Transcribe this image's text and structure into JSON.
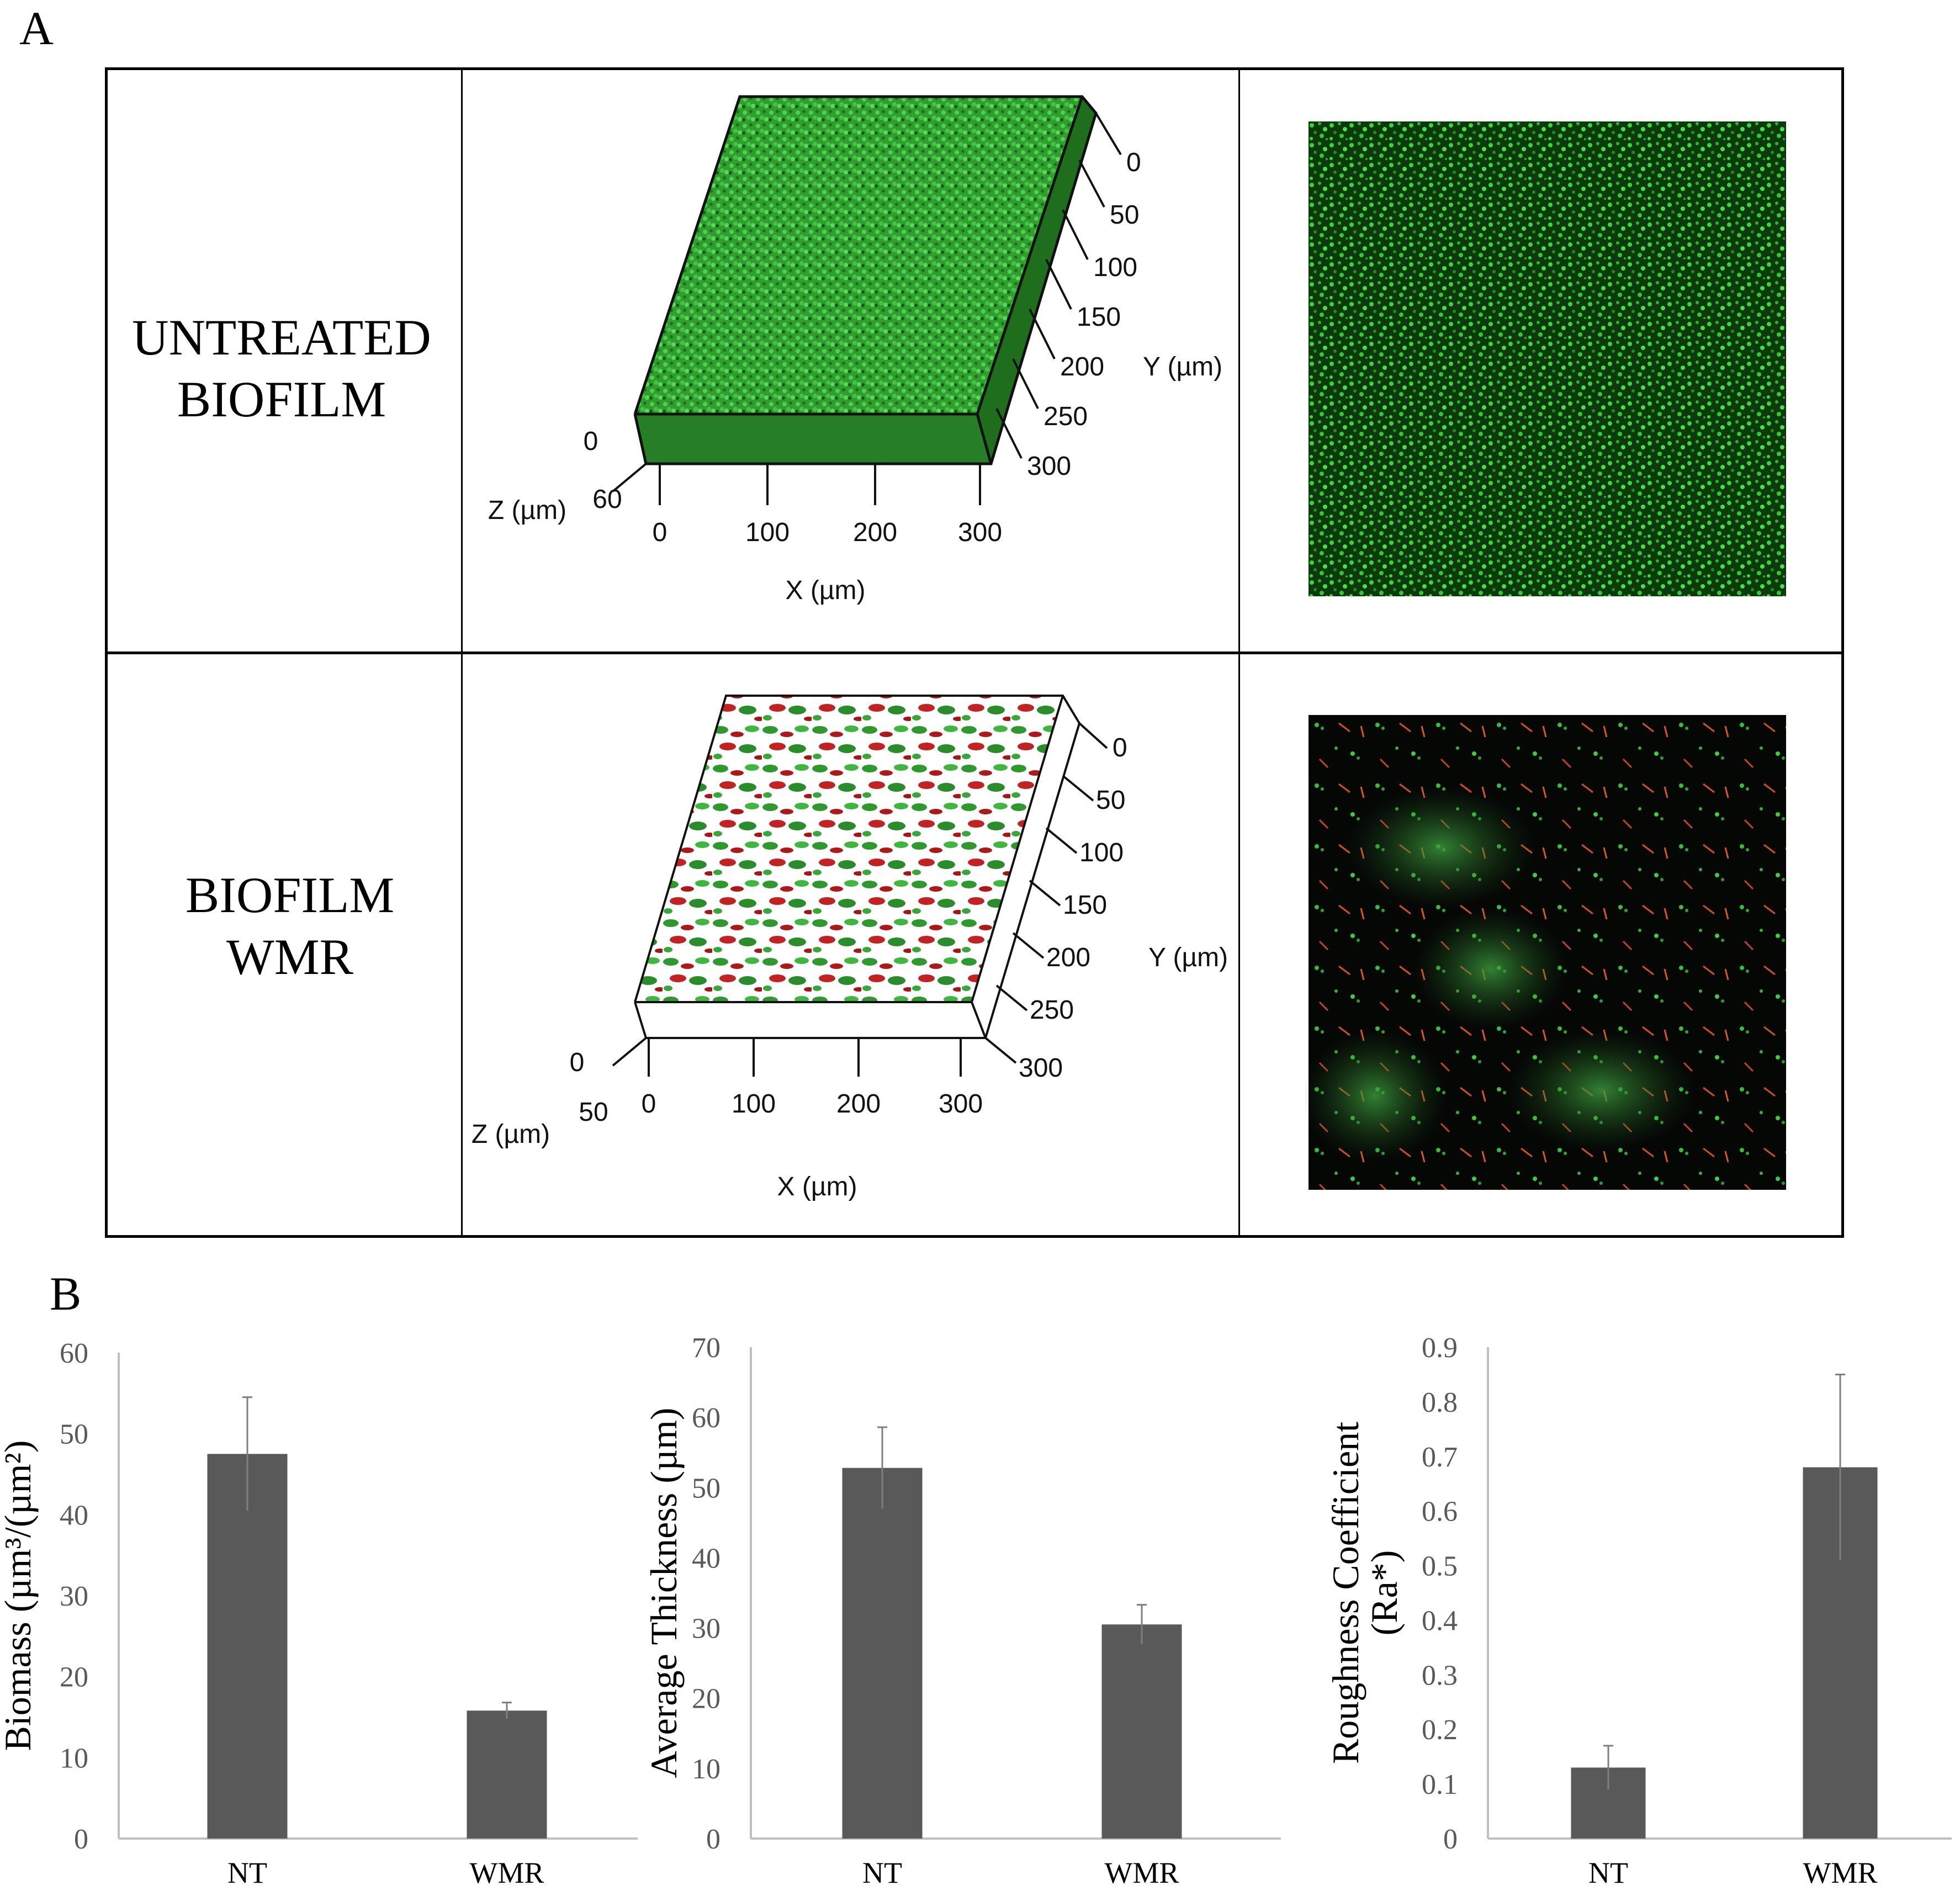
{
  "panel_a": {
    "label": "A",
    "rows": [
      {
        "label_line1": "UNTREATED",
        "label_line2": "BIOFILM",
        "render3d": {
          "y_ticks": [
            "0",
            "50",
            "100",
            "150",
            "200",
            "250",
            "300"
          ],
          "x_ticks": [
            "0",
            "100",
            "200",
            "300"
          ],
          "z_ticks": [
            "0",
            "60"
          ],
          "y_label": "Y (µm)",
          "x_label": "X (µm)",
          "z_label": "Z (µm)",
          "content": "dense green (live) cells"
        },
        "micrograph": "dense green live-cell confocal image"
      },
      {
        "label_line1": "BIOFILM",
        "label_line2": "WMR",
        "render3d": {
          "y_ticks": [
            "0",
            "50",
            "100",
            "150",
            "200",
            "250",
            "300"
          ],
          "x_ticks": [
            "0",
            "100",
            "200",
            "300"
          ],
          "z_ticks": [
            "0",
            "50"
          ],
          "y_label": "Y (µm)",
          "x_label": "X (µm)",
          "z_label": "Z (µm)",
          "content": "sparse green and red (dead) cells"
        },
        "micrograph": "sparse green/red confocal image"
      }
    ]
  },
  "panel_b": {
    "label": "B",
    "colors": {
      "bar": "#595959",
      "axis": "#bfbfbf",
      "tick_text": "#595959"
    }
  },
  "chart_data": [
    {
      "type": "bar",
      "categories": [
        "NT",
        "WMR"
      ],
      "values": [
        47.5,
        15.8
      ],
      "errors": [
        7,
        1
      ],
      "ylabel": "Biomass (µm³/(µm²)",
      "ylim": [
        0,
        60
      ],
      "yticks": [
        "0",
        "10",
        "20",
        "30",
        "40",
        "50",
        "60"
      ],
      "grid": false
    },
    {
      "type": "bar",
      "categories": [
        "NT",
        "WMR"
      ],
      "values": [
        52.8,
        30.5
      ],
      "errors": [
        5.8,
        2.8
      ],
      "ylabel": "Average Thickness (µm)",
      "ylim": [
        0,
        70
      ],
      "yticks": [
        "0",
        "10",
        "20",
        "30",
        "40",
        "50",
        "60",
        "70"
      ],
      "grid": false
    },
    {
      "type": "bar",
      "categories": [
        "NT",
        "WMR"
      ],
      "values": [
        0.13,
        0.68
      ],
      "errors": [
        0.04,
        0.17
      ],
      "ylabel_line1": "Roughness Coefficient",
      "ylabel_line2": "(Ra*)",
      "ylim": [
        0,
        0.9
      ],
      "yticks": [
        "0",
        "0.1",
        "0.2",
        "0.3",
        "0.4",
        "0.5",
        "0.6",
        "0.7",
        "0.8",
        "0.9"
      ],
      "grid": false
    }
  ]
}
